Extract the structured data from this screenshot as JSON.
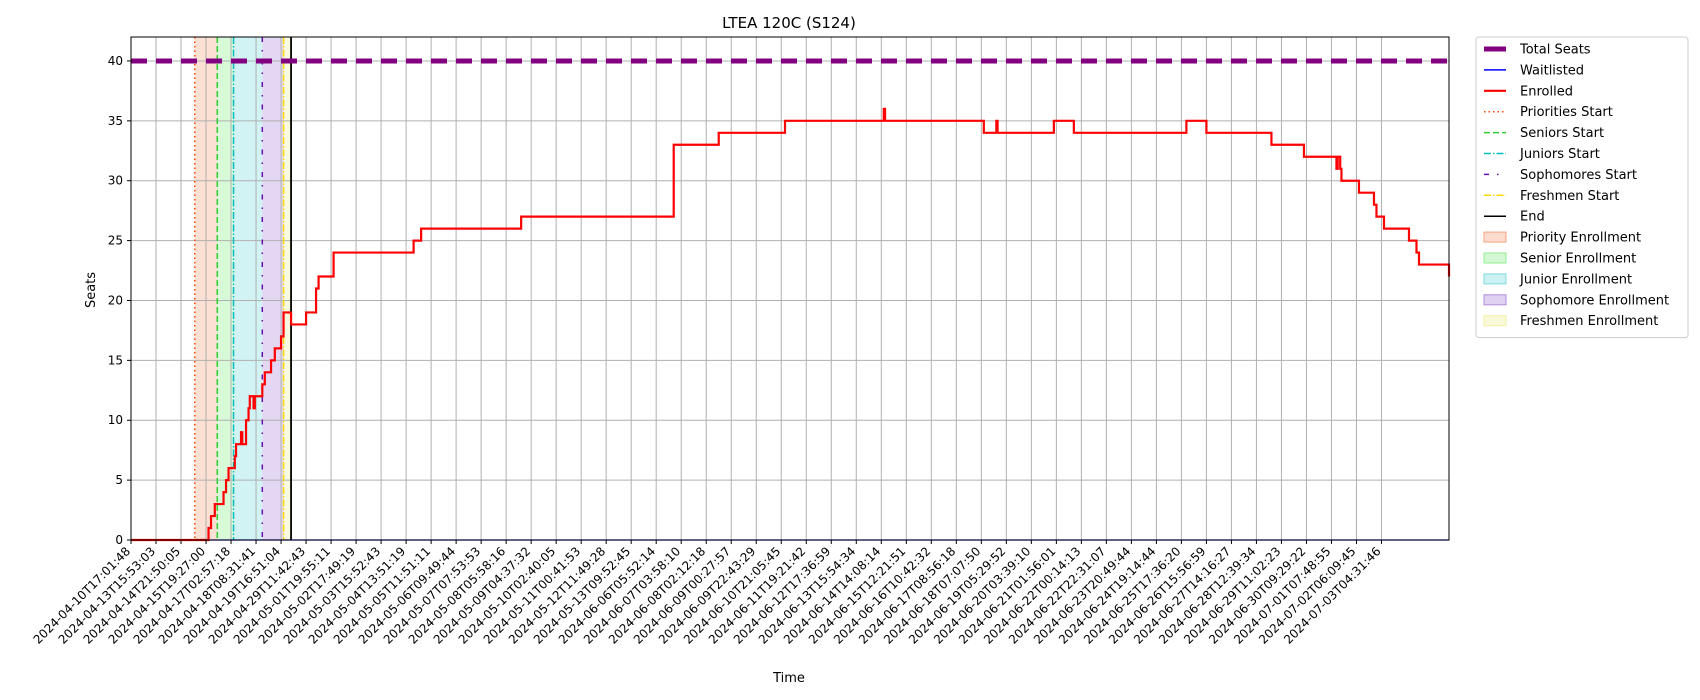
{
  "chart_data": {
    "type": "line",
    "title": "LTEA 120C (S124)",
    "xlabel": "Time",
    "ylabel": "Seats",
    "ylim": [
      0,
      42
    ],
    "yticks": [
      0,
      5,
      10,
      15,
      20,
      25,
      30,
      35,
      40
    ],
    "grid": true,
    "legend_position": "outside-top-right",
    "x_tick_labels": [
      "2024-04-10T17:01:48",
      "2024-04-13T15:53:03",
      "2024-04-14T21:50:05",
      "2024-04-15T19:27:00",
      "2024-04-17T02:57:18",
      "2024-04-18T08:31:41",
      "2024-04-19T16:51:04",
      "2024-04-29T11:42:43",
      "2024-05-01T19:55:11",
      "2024-05-02T17:49:19",
      "2024-05-03T15:52:43",
      "2024-05-04T13:51:19",
      "2024-05-05T11:51:11",
      "2024-05-06T09:49:44",
      "2024-05-07T07:53:53",
      "2024-05-08T05:58:16",
      "2024-05-09T04:37:32",
      "2024-05-10T02:40:05",
      "2024-05-11T00:41:53",
      "2024-05-12T11:49:28",
      "2024-05-13T09:52:45",
      "2024-06-06T05:52:14",
      "2024-06-07T03:58:10",
      "2024-06-08T02:12:18",
      "2024-06-09T00:27:57",
      "2024-06-09T22:43:29",
      "2024-06-10T21:05:45",
      "2024-06-11T19:21:42",
      "2024-06-12T17:36:59",
      "2024-06-13T15:54:34",
      "2024-06-14T14:08:14",
      "2024-06-15T12:21:51",
      "2024-06-16T10:42:32",
      "2024-06-17T08:56:18",
      "2024-06-18T07:07:50",
      "2024-06-19T05:29:52",
      "2024-06-20T03:39:10",
      "2024-06-21T01:56:01",
      "2024-06-22T00:14:13",
      "2024-06-22T22:31:07",
      "2024-06-23T20:49:44",
      "2024-06-24T19:14:44",
      "2024-06-25T17:36:20",
      "2024-06-26T15:56:59",
      "2024-06-27T14:16:27",
      "2024-06-28T12:39:34",
      "2024-06-29T11:02:23",
      "2024-06-30T09:29:22",
      "2024-07-01T07:48:55",
      "2024-07-02T06:09:45",
      "2024-07-03T04:31:46"
    ],
    "x_max": 52.7,
    "series": [
      {
        "name": "Total Seats",
        "color": "#800080",
        "style": "dashed-thick",
        "x": [
          0,
          52.7
        ],
        "y": [
          40,
          40
        ]
      },
      {
        "name": "Waitlisted",
        "color": "#0000ff",
        "style": "solid",
        "x": [
          0,
          52.7
        ],
        "y": [
          0,
          0
        ]
      },
      {
        "name": "Enrolled",
        "color": "#ff0000",
        "style": "step",
        "x": [
          0,
          3.1,
          3.2,
          3.35,
          3.6,
          3.7,
          3.8,
          3.9,
          3.95,
          4.15,
          4.2,
          4.4,
          4.45,
          4.6,
          4.7,
          4.75,
          4.9,
          4.95,
          5.1,
          5.25,
          5.35,
          5.6,
          5.7,
          5.75,
          5.85,
          6.0,
          6.1,
          6.4,
          6.55,
          6.65,
          7.0,
          7.1,
          7.4,
          7.5,
          7.9,
          8.1,
          11.3,
          11.6,
          11.8,
          15.6,
          15.7,
          21.6,
          21.7,
          23.5,
          26.1,
          26.15,
          27.2,
          30.0,
          30.1,
          30.15,
          33.1,
          34.1,
          34.6,
          34.65,
          36.9,
          37.6,
          37.7,
          42.2,
          43.0,
          45.6,
          46.9,
          47.05,
          48.2,
          48.25,
          48.35,
          48.4,
          48.5,
          49.1,
          49.7,
          49.8,
          50.1,
          50.1,
          51.1,
          51.2,
          51.4,
          51.5,
          52.7
        ],
        "y": [
          0,
          1,
          2,
          3,
          3,
          4,
          5,
          6,
          6,
          7,
          8,
          9,
          8,
          10,
          11,
          12,
          11,
          12,
          12,
          13,
          14,
          15,
          15,
          16,
          16,
          17,
          19,
          18,
          18,
          18,
          19,
          19,
          21,
          22,
          22,
          24,
          25,
          26,
          26,
          27,
          27,
          27,
          33,
          34,
          34,
          35,
          35,
          35,
          36,
          35,
          35,
          34,
          35,
          34,
          35,
          35,
          34,
          35,
          34,
          33,
          32,
          32,
          31,
          32,
          31,
          30,
          30,
          29,
          28,
          27,
          26,
          26,
          25,
          25,
          24,
          23,
          22
        ]
      }
    ],
    "markers": [
      {
        "name": "Priorities Start",
        "x": 2.55,
        "color": "#ff4500",
        "style": "dotted"
      },
      {
        "name": "Seniors Start",
        "x": 3.45,
        "color": "#32cd32",
        "style": "dashed"
      },
      {
        "name": "Juniors Start",
        "x": 4.1,
        "color": "#00bfbf",
        "style": "dashdot"
      },
      {
        "name": "Sophomores Start",
        "x": 5.25,
        "color": "#6a0dad",
        "style": "loosely-dashdot"
      },
      {
        "name": "Freshmen Start",
        "x": 6.1,
        "color": "#ffd700",
        "style": "dashdot"
      },
      {
        "name": "End",
        "x": 6.4,
        "color": "#000000",
        "style": "solid"
      }
    ],
    "spans": [
      {
        "name": "Priority Enrollment",
        "x0": 2.55,
        "x1": 3.45,
        "color": "#f4a582"
      },
      {
        "name": "Senior Enrollment",
        "x0": 3.45,
        "x1": 4.1,
        "color": "#90ee90"
      },
      {
        "name": "Junior Enrollment",
        "x0": 4.1,
        "x1": 5.25,
        "color": "#7fdcdf"
      },
      {
        "name": "Sophomore Enrollment",
        "x0": 5.25,
        "x1": 6.1,
        "color": "#b28ddc"
      },
      {
        "name": "Freshmen Enrollment",
        "x0": 6.1,
        "x1": 6.4,
        "color": "#f0f0a0"
      }
    ]
  }
}
